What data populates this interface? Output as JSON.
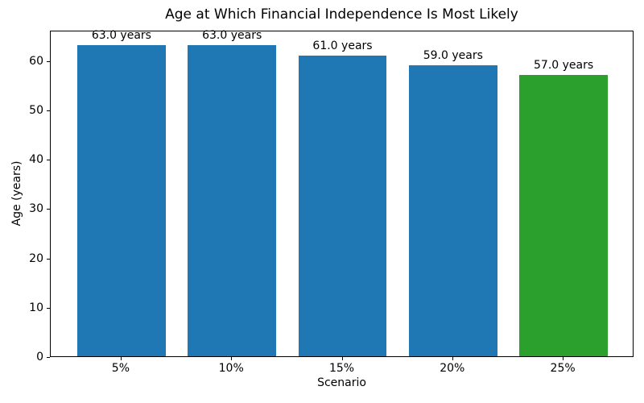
{
  "chart_data": {
    "type": "bar",
    "title": "Age at Which Financial Independence Is Most Likely",
    "xlabel": "Scenario",
    "ylabel": "Age (years)",
    "categories": [
      "5%",
      "10%",
      "15%",
      "20%",
      "25%"
    ],
    "values": [
      63.0,
      63.0,
      61.0,
      59.0,
      57.0
    ],
    "bar_labels": [
      "63.0 years",
      "63.0 years",
      "61.0 years",
      "59.0 years",
      "57.0 years"
    ],
    "bar_colors": [
      "#1f77b4",
      "#1f77b4",
      "#1f77b4",
      "#1f77b4",
      "#2ca02c"
    ],
    "yticks": [
      0,
      10,
      20,
      30,
      40,
      50,
      60
    ],
    "ylim": [
      0,
      66.15
    ],
    "grid": false,
    "legend": "none",
    "colors": {
      "bar_default": "#1f77b4",
      "bar_highlight": "#2ca02c",
      "axis": "#000000",
      "background": "#ffffff"
    }
  }
}
